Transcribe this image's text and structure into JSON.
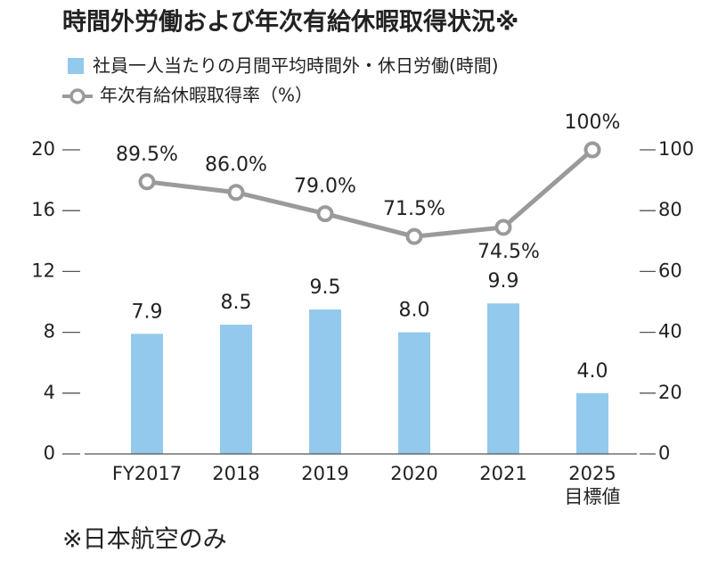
{
  "chart_data": {
    "type": "bar-line",
    "title": "時間外労働および年次有給休暇取得状況※",
    "categories": [
      "FY2017",
      "2018",
      "2019",
      "2020",
      "2021",
      "2025\n目標値"
    ],
    "series": [
      {
        "name": "社員一人当たりの月間平均時間外・休日労働(時間)",
        "type": "bar",
        "color": "#93c9ec",
        "values": [
          7.9,
          8.5,
          9.5,
          8.0,
          9.9,
          4.0
        ],
        "value_labels": [
          "7.9",
          "8.5",
          "9.5",
          "8.0",
          "9.9",
          "4.0"
        ]
      },
      {
        "name": "年次有給休暇取得率（%）",
        "type": "line",
        "axis": "y2",
        "color": "#9a9a9a",
        "values": [
          89.5,
          86.0,
          79.0,
          71.5,
          74.5,
          100
        ],
        "value_labels": [
          "89.5%",
          "86.0%",
          "79.0%",
          "71.5%",
          "74.5%",
          "100%"
        ]
      }
    ],
    "ylim": [
      0,
      20
    ],
    "yticks": [
      0,
      4,
      8,
      12,
      16,
      20
    ],
    "y2lim": [
      0,
      100
    ],
    "y2ticks": [
      0,
      20,
      40,
      60,
      80,
      100
    ],
    "footnote": "※日本航空のみ"
  }
}
